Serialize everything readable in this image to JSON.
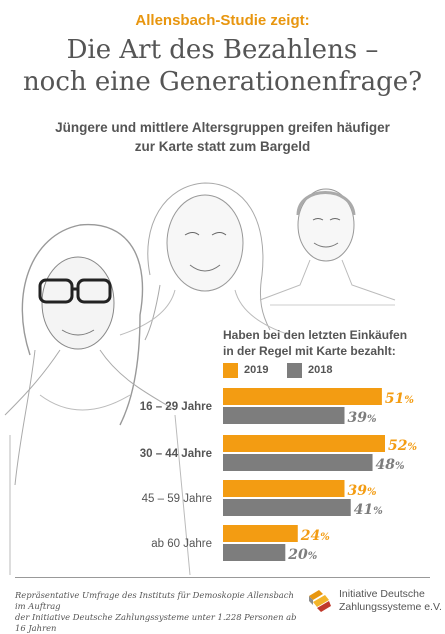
{
  "kicker": "Allensbach-Studie zeigt:",
  "title_line1": "Die Art des Bezahlens –",
  "title_line2": "noch eine Generationenfrage?",
  "subtitle_line1": "Jüngere und mittlere Altersgruppen greifen häufiger",
  "subtitle_line2": "zur Karte statt zum Bargeld",
  "question_line1": "Haben bei den letzten Einkäufen",
  "question_line2": "in der Regel mit Karte bezahlt:",
  "colors": {
    "accent": "#f39c12",
    "gray": "#7d7d7d",
    "text": "#555555"
  },
  "chart_data": {
    "type": "bar",
    "orientation": "horizontal",
    "categories": [
      "16 – 29 Jahre",
      "30 – 44 Jahre",
      "45 – 59 Jahre",
      "ab 60 Jahre"
    ],
    "series": [
      {
        "name": "2019",
        "values": [
          51,
          52,
          39,
          24
        ],
        "labels": [
          "51%",
          "52%",
          "39%",
          "24%"
        ],
        "color": "#f39c12"
      },
      {
        "name": "2018",
        "values": [
          39,
          48,
          41,
          20
        ],
        "labels": [
          "39%",
          "48%",
          "41%",
          "20%"
        ],
        "color": "#7d7d7d"
      }
    ],
    "emphasized_categories": [
      "16 – 29 Jahre",
      "30 – 44 Jahre"
    ],
    "xlim": [
      0,
      52
    ],
    "grid": false,
    "legend": "top"
  },
  "footer_line1": "Repräsentative Umfrage des Instituts für Demoskopie Allensbach im Auftrag",
  "footer_line2": "der Initiative Deutsche Zahlungssysteme unter 1.228 Personen ab 16 Jahren",
  "org_line1": "Initiative Deutsche",
  "org_line2": "Zahlungssysteme e.V."
}
